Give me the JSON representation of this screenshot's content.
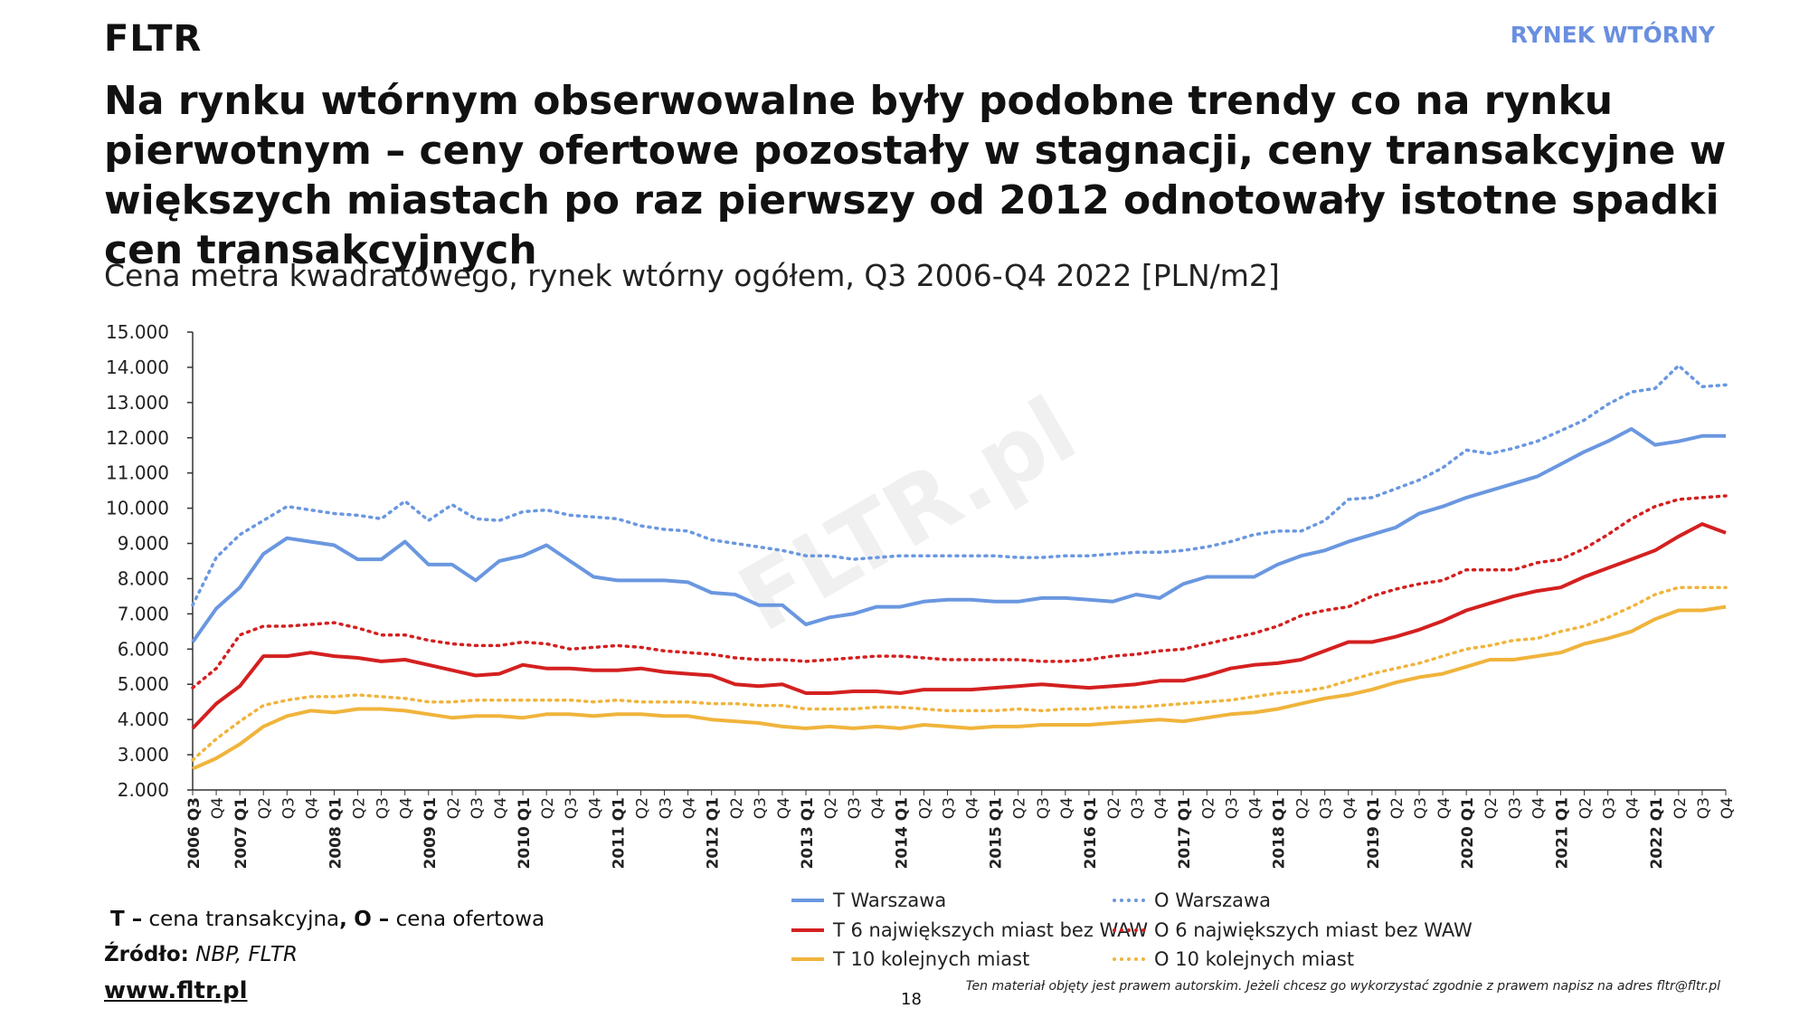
{
  "header": {
    "logo": "FLTR",
    "section": "RYNEK WTÓRNY",
    "title": "Na rynku wtórnym obserwowalne były podobne trendy co na rynku pierwotnym – ceny ofertowe pozostały w stagnacji, ceny transakcyjne w większych miastach po raz pierwszy od 2012 odnotowały istotne spadki cen transakcyjnych",
    "subtitle": "Cena metra kwadratowego, rynek wtórny ogółem, Q3 2006-Q4 2022 [PLN/m2]"
  },
  "watermark": "FLTR.pl",
  "footer": {
    "note_T": "T –",
    "note_T_text": "cena transakcyjna",
    "note_O": "O –",
    "note_O_text": "cena ofertowa",
    "source_label": "Źródło:",
    "source_text": "NBP, FLTR",
    "url": "www.fltr.pl",
    "page": "18",
    "copyright": "Ten materiał objęty jest prawem autorskim. Jeżeli chcesz go wykorzystać zgodnie z prawem napisz na adres fltr@fltr.pl"
  },
  "colors": {
    "warszawa": "#6a97e0",
    "six_cities": "#d42020",
    "ten_cities": "#f0b43c",
    "axis": "#333333"
  },
  "chart_data": {
    "type": "line",
    "title": "Cena metra kwadratowego, rynek wtórny ogółem, Q3 2006-Q4 2022 [PLN/m2]",
    "xlabel": "",
    "ylabel": "PLN/m2",
    "ylim": [
      2000,
      15000
    ],
    "y_ticks": [
      2000,
      3000,
      4000,
      5000,
      6000,
      7000,
      8000,
      9000,
      10000,
      11000,
      12000,
      13000,
      14000,
      15000
    ],
    "y_tick_labels": [
      "2.000",
      "3.000",
      "4.000",
      "5.000",
      "6.000",
      "7.000",
      "8.000",
      "9.000",
      "10.000",
      "11.000",
      "12.000",
      "13.000",
      "14.000",
      "15.000"
    ],
    "categories": [
      "2006 Q3",
      "Q4",
      "2007 Q1",
      "Q2",
      "Q3",
      "Q4",
      "2008 Q1",
      "Q2",
      "Q3",
      "Q4",
      "2009 Q1",
      "Q2",
      "Q3",
      "Q4",
      "2010 Q1",
      "Q2",
      "Q3",
      "Q4",
      "2011 Q1",
      "Q2",
      "Q3",
      "Q4",
      "2012 Q1",
      "Q2",
      "Q3",
      "Q4",
      "2013 Q1",
      "Q2",
      "Q3",
      "Q4",
      "2014 Q1",
      "Q2",
      "Q3",
      "Q4",
      "2015 Q1",
      "Q2",
      "Q3",
      "Q4",
      "2016 Q1",
      "Q2",
      "Q3",
      "Q4",
      "2017 Q1",
      "Q2",
      "Q3",
      "Q4",
      "2018 Q1",
      "Q2",
      "Q3",
      "Q4",
      "2019 Q1",
      "Q2",
      "Q3",
      "Q4",
      "2020 Q1",
      "Q2",
      "Q3",
      "Q4",
      "2021 Q1",
      "Q2",
      "Q3",
      "Q4",
      "2022 Q1",
      "Q2",
      "Q3",
      "Q4"
    ],
    "series": [
      {
        "name": "T Warszawa",
        "color_key": "warszawa",
        "dash": "solid",
        "values": [
          6200,
          7150,
          7750,
          8700,
          9150,
          9050,
          8950,
          8550,
          8550,
          9050,
          8400,
          8400,
          7950,
          8500,
          8650,
          8950,
          8500,
          8050,
          7950,
          7950,
          7950,
          7900,
          7600,
          7550,
          7250,
          7250,
          6700,
          6900,
          7000,
          7200,
          7200,
          7350,
          7400,
          7400,
          7350,
          7350,
          7450,
          7450,
          7400,
          7350,
          7550,
          7450,
          7850,
          8050,
          8050,
          8050,
          8400,
          8650,
          8800,
          9050,
          9250,
          9450,
          9850,
          10050,
          10300,
          10500,
          10700,
          10900,
          11250,
          11600,
          11900,
          12250,
          11800,
          11900,
          12050,
          12050
        ]
      },
      {
        "name": "T 6 największych miast bez WAW",
        "color_key": "six_cities",
        "dash": "solid",
        "values": [
          3750,
          4450,
          4950,
          5800,
          5800,
          5900,
          5800,
          5750,
          5650,
          5700,
          5550,
          5400,
          5250,
          5300,
          5550,
          5450,
          5450,
          5400,
          5400,
          5450,
          5350,
          5300,
          5250,
          5000,
          4950,
          5000,
          4750,
          4750,
          4800,
          4800,
          4750,
          4850,
          4850,
          4850,
          4900,
          4950,
          5000,
          4950,
          4900,
          4950,
          5000,
          5100,
          5100,
          5250,
          5450,
          5550,
          5600,
          5700,
          5950,
          6200,
          6200,
          6350,
          6550,
          6800,
          7100,
          7300,
          7500,
          7650,
          7750,
          8050,
          8300,
          8550,
          8800,
          9200,
          9550,
          9300
        ]
      },
      {
        "name": "T 10 kolejnych miast",
        "color_key": "ten_cities",
        "dash": "solid",
        "values": [
          2600,
          2900,
          3300,
          3800,
          4100,
          4250,
          4200,
          4300,
          4300,
          4250,
          4150,
          4050,
          4100,
          4100,
          4050,
          4150,
          4150,
          4100,
          4150,
          4150,
          4100,
          4100,
          4000,
          3950,
          3900,
          3800,
          3750,
          3800,
          3750,
          3800,
          3750,
          3850,
          3800,
          3750,
          3800,
          3800,
          3850,
          3850,
          3850,
          3900,
          3950,
          4000,
          3950,
          4050,
          4150,
          4200,
          4300,
          4450,
          4600,
          4700,
          4850,
          5050,
          5200,
          5300,
          5500,
          5700,
          5700,
          5800,
          5900,
          6150,
          6300,
          6500,
          6850,
          7100,
          7100,
          7200
        ]
      },
      {
        "name": "O Warszawa",
        "color_key": "warszawa",
        "dash": "dotted",
        "values": [
          7250,
          8600,
          9250,
          9650,
          10050,
          9950,
          9850,
          9800,
          9700,
          10200,
          9650,
          10100,
          9700,
          9650,
          9900,
          9950,
          9800,
          9750,
          9700,
          9500,
          9400,
          9350,
          9100,
          9000,
          8900,
          8800,
          8650,
          8650,
          8550,
          8600,
          8650,
          8650,
          8650,
          8650,
          8650,
          8600,
          8600,
          8650,
          8650,
          8700,
          8750,
          8750,
          8800,
          8900,
          9050,
          9250,
          9350,
          9350,
          9650,
          10250,
          10300,
          10550,
          10800,
          11150,
          11650,
          11550,
          11700,
          11900,
          12200,
          12500,
          12950,
          13300,
          13400,
          14050,
          13450,
          13500
        ]
      },
      {
        "name": "O 6 największych miast bez WAW",
        "color_key": "six_cities",
        "dash": "dotted",
        "values": [
          4900,
          5450,
          6400,
          6650,
          6650,
          6700,
          6750,
          6600,
          6400,
          6400,
          6250,
          6150,
          6100,
          6100,
          6200,
          6150,
          6000,
          6050,
          6100,
          6050,
          5950,
          5900,
          5850,
          5750,
          5700,
          5700,
          5650,
          5700,
          5750,
          5800,
          5800,
          5750,
          5700,
          5700,
          5700,
          5700,
          5650,
          5650,
          5700,
          5800,
          5850,
          5950,
          6000,
          6150,
          6300,
          6450,
          6650,
          6950,
          7100,
          7200,
          7500,
          7700,
          7850,
          7950,
          8250,
          8250,
          8250,
          8450,
          8550,
          8850,
          9250,
          9700,
          10050,
          10250,
          10300,
          10350
        ]
      },
      {
        "name": "O 10 kolejnych miast",
        "color_key": "ten_cities",
        "dash": "dotted",
        "values": [
          2850,
          3450,
          3950,
          4400,
          4550,
          4650,
          4650,
          4700,
          4650,
          4600,
          4500,
          4500,
          4550,
          4550,
          4550,
          4550,
          4550,
          4500,
          4550,
          4500,
          4500,
          4500,
          4450,
          4450,
          4400,
          4400,
          4300,
          4300,
          4300,
          4350,
          4350,
          4300,
          4250,
          4250,
          4250,
          4300,
          4250,
          4300,
          4300,
          4350,
          4350,
          4400,
          4450,
          4500,
          4550,
          4650,
          4750,
          4800,
          4900,
          5100,
          5300,
          5450,
          5600,
          5800,
          6000,
          6100,
          6250,
          6300,
          6500,
          6650,
          6900,
          7200,
          7550,
          7750,
          7750,
          7750
        ]
      }
    ]
  }
}
